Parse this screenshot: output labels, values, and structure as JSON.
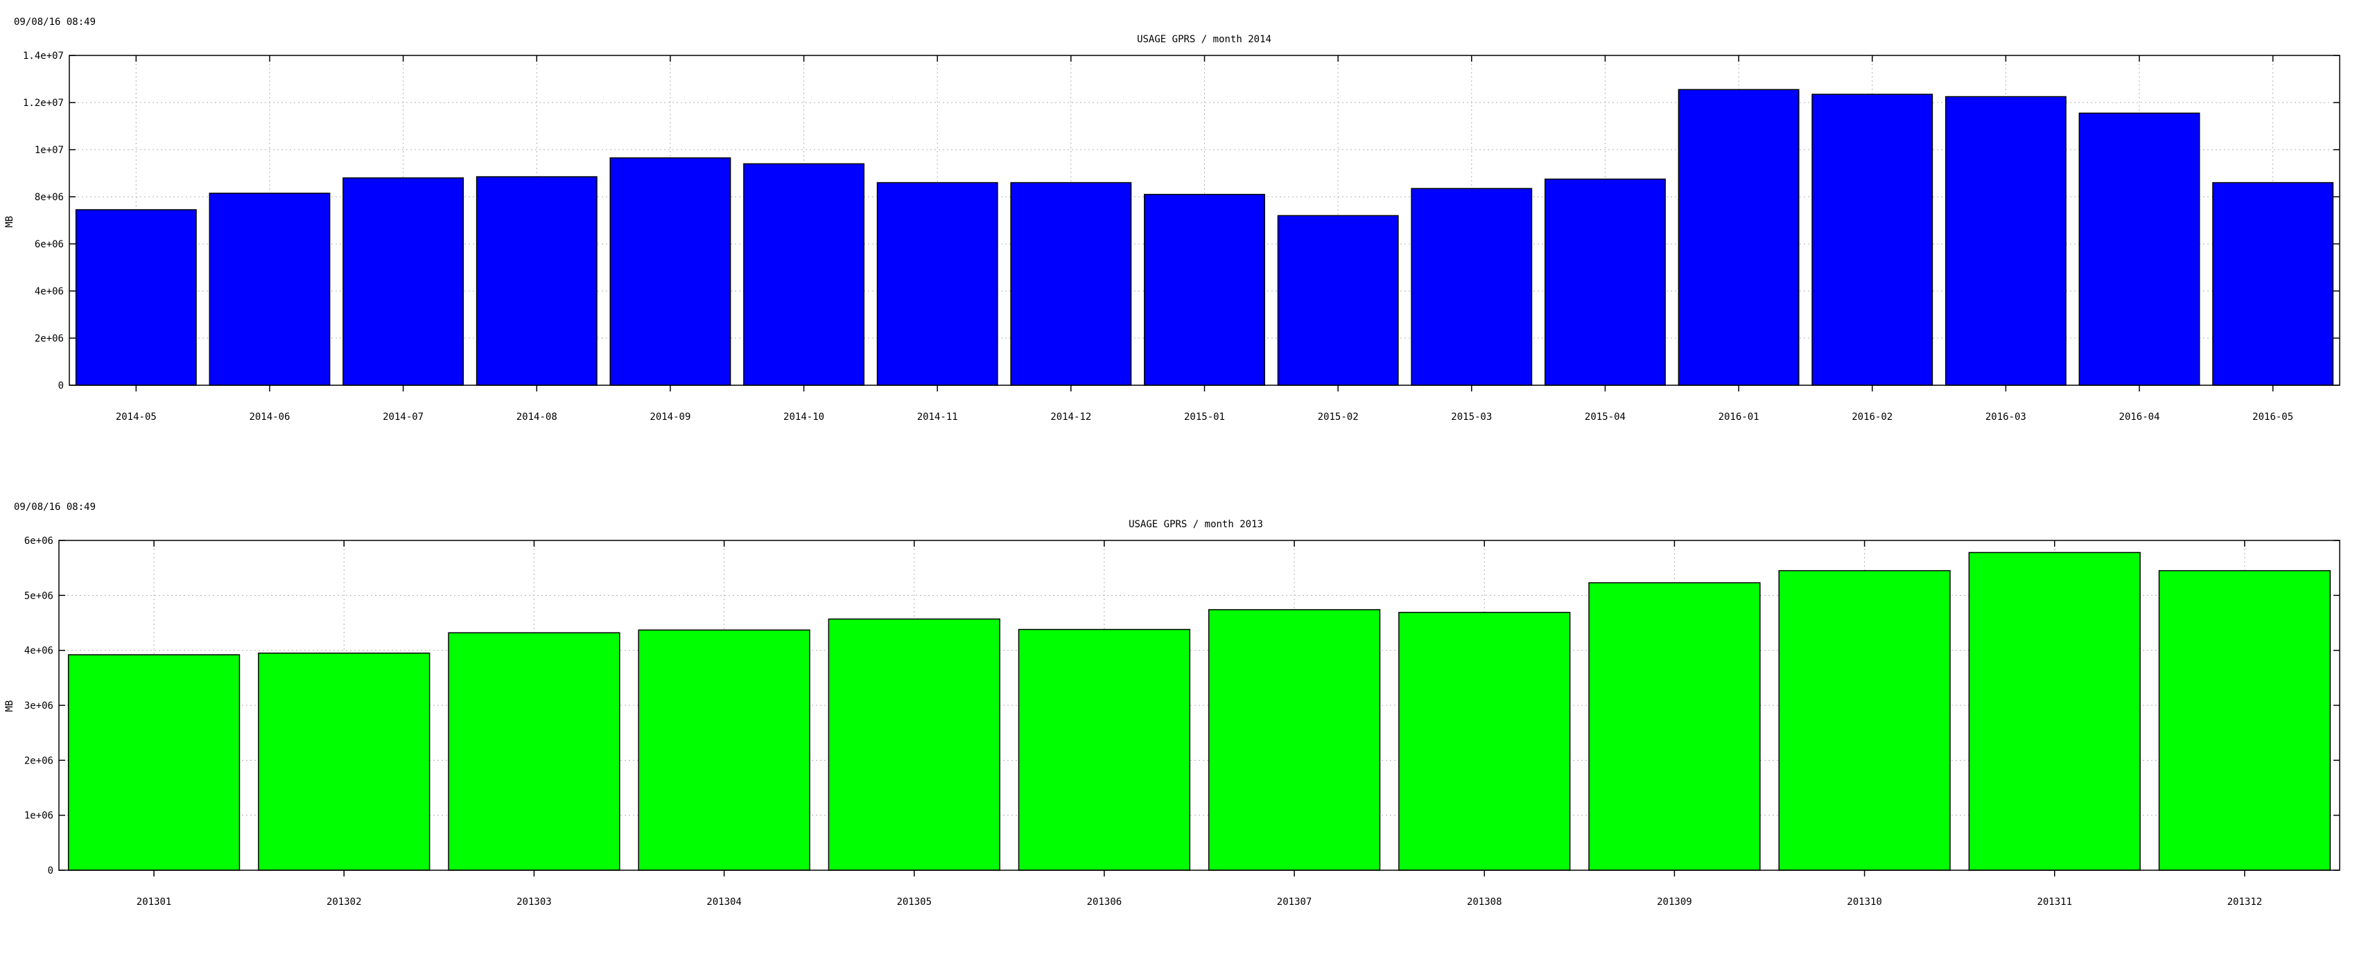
{
  "chart_data": [
    {
      "type": "bar",
      "timestamp": "09/08/16 08:49",
      "title": "USAGE GPRS / month  2014",
      "ylabel": "MB",
      "xlabel": "",
      "color": "#0000ff",
      "ylim": [
        0,
        14000000
      ],
      "y_ticks": [
        0,
        2000000,
        4000000,
        6000000,
        8000000,
        10000000,
        12000000,
        14000000
      ],
      "y_tick_labels": [
        "0",
        "2e+06",
        "4e+06",
        "6e+06",
        "8e+06",
        "1e+07",
        "1.2e+07",
        "1.4e+07"
      ],
      "grid": true,
      "legend": "none",
      "categories": [
        "2014-05",
        "2014-06",
        "2014-07",
        "2014-08",
        "2014-09",
        "2014-10",
        "2014-11",
        "2014-12",
        "2015-01",
        "2015-02",
        "2015-03",
        "2015-04",
        "2016-01",
        "2016-02",
        "2016-03",
        "2016-04",
        "2016-05"
      ],
      "values": [
        7450000,
        8150000,
        8800000,
        8850000,
        9650000,
        9400000,
        8600000,
        8600000,
        8100000,
        7200000,
        8350000,
        8750000,
        12550000,
        12350000,
        12250000,
        11550000,
        8600000
      ]
    },
    {
      "type": "bar",
      "timestamp": "09/08/16 08:49",
      "title": "USAGE GPRS / month 2013",
      "ylabel": "MB",
      "xlabel": "",
      "color": "#00ff00",
      "ylim": [
        0,
        6000000
      ],
      "y_ticks": [
        0,
        1000000,
        2000000,
        3000000,
        4000000,
        5000000,
        6000000
      ],
      "y_tick_labels": [
        "0",
        "1e+06",
        "2e+06",
        "3e+06",
        "4e+06",
        "5e+06",
        "6e+06"
      ],
      "grid": true,
      "legend": "none",
      "categories": [
        "201301",
        "201302",
        "201303",
        "201304",
        "201305",
        "201306",
        "201307",
        "201308",
        "201309",
        "201310",
        "201311",
        "201312"
      ],
      "values": [
        3920000,
        3950000,
        4320000,
        4370000,
        4570000,
        4380000,
        4740000,
        4690000,
        5230000,
        5450000,
        5780000,
        5450000
      ]
    }
  ]
}
